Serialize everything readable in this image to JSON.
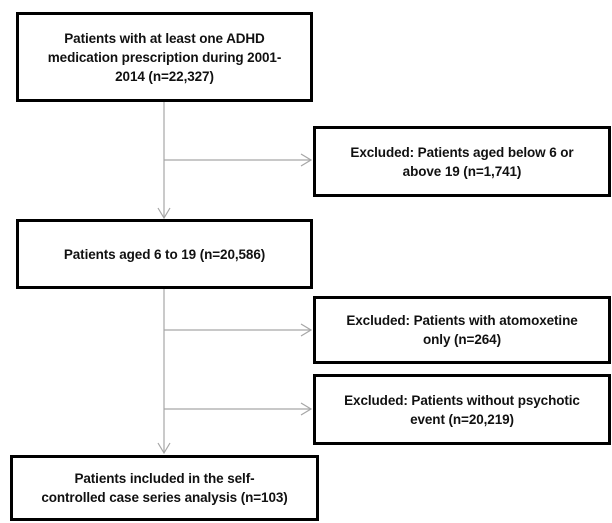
{
  "flowchart": {
    "box1": {
      "lines": [
        "Patients with at least one ADHD",
        "medication prescription during 2001-",
        "2014 (n=22,327)"
      ]
    },
    "excluded1": {
      "lines": [
        "Excluded: Patients aged below 6 or",
        "above 19 (n=1,741)"
      ]
    },
    "box2": {
      "lines": [
        "Patients aged 6 to 19 (n=20,586)"
      ]
    },
    "excluded2": {
      "lines": [
        "Excluded: Patients with atomoxetine",
        "only (n=264)"
      ]
    },
    "excluded3": {
      "lines": [
        "Excluded: Patients without psychotic",
        "event (n=20,219)"
      ]
    },
    "box3": {
      "lines": [
        "Patients included in the self-",
        "controlled case series analysis (n=103)"
      ]
    }
  },
  "colors": {
    "box_border": "#000000",
    "connector": "#a6a6a6"
  }
}
